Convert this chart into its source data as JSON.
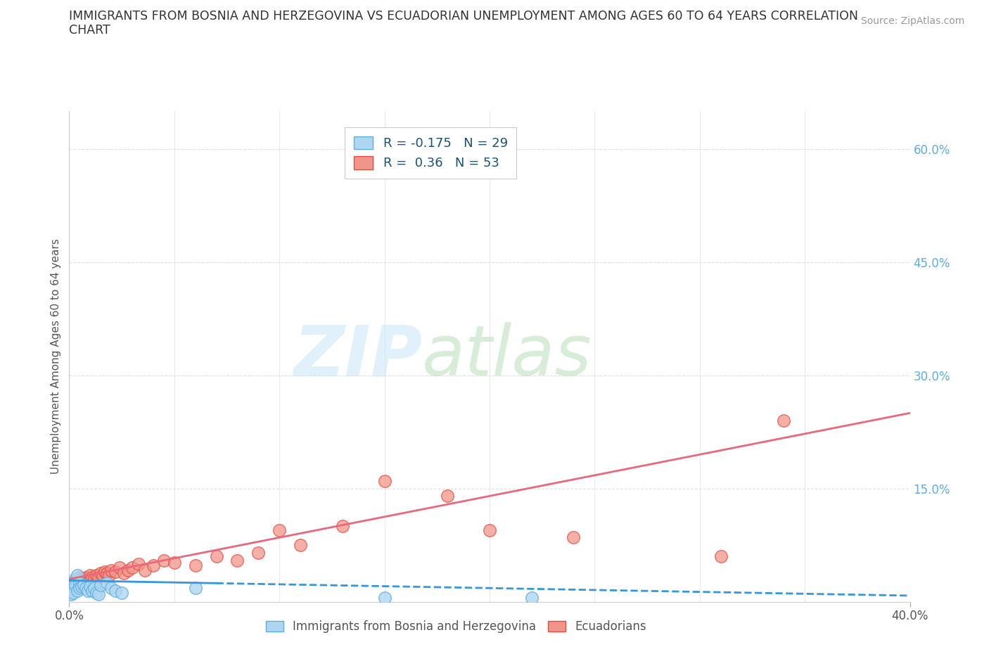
{
  "title_line1": "IMMIGRANTS FROM BOSNIA AND HERZEGOVINA VS ECUADORIAN UNEMPLOYMENT AMONG AGES 60 TO 64 YEARS CORRELATION",
  "title_line2": "CHART",
  "source": "Source: ZipAtlas.com",
  "ylabel": "Unemployment Among Ages 60 to 64 years",
  "xlim": [
    0.0,
    0.4
  ],
  "ylim": [
    0.0,
    0.65
  ],
  "right_yticks": [
    0.15,
    0.3,
    0.45,
    0.6
  ],
  "right_yticklabels": [
    "15.0%",
    "30.0%",
    "45.0%",
    "60.0%"
  ],
  "blue_color": "#AED6F1",
  "blue_edge_color": "#5DADE2",
  "pink_color": "#F1948A",
  "pink_edge_color": "#E74C3C",
  "blue_R": -0.175,
  "blue_N": 29,
  "pink_R": 0.36,
  "pink_N": 53,
  "blue_line_color": "#3498DB",
  "pink_line_color": "#E8697D",
  "watermark_zip": "ZIP",
  "watermark_atlas": "atlas",
  "legend_label_blue": "Immigrants from Bosnia and Herzegovina",
  "legend_label_pink": "Ecuadorians",
  "blue_scatter_x": [
    0.001,
    0.001,
    0.001,
    0.002,
    0.002,
    0.002,
    0.003,
    0.003,
    0.004,
    0.004,
    0.005,
    0.005,
    0.006,
    0.007,
    0.008,
    0.009,
    0.01,
    0.011,
    0.012,
    0.013,
    0.014,
    0.015,
    0.018,
    0.02,
    0.022,
    0.025,
    0.06,
    0.15,
    0.22
  ],
  "blue_scatter_y": [
    0.02,
    0.015,
    0.01,
    0.025,
    0.018,
    0.012,
    0.03,
    0.022,
    0.035,
    0.015,
    0.025,
    0.018,
    0.02,
    0.022,
    0.018,
    0.015,
    0.02,
    0.015,
    0.018,
    0.012,
    0.01,
    0.022,
    0.025,
    0.018,
    0.015,
    0.012,
    0.018,
    0.005,
    0.005
  ],
  "pink_scatter_x": [
    0.001,
    0.001,
    0.002,
    0.002,
    0.003,
    0.003,
    0.004,
    0.004,
    0.005,
    0.005,
    0.006,
    0.006,
    0.007,
    0.007,
    0.008,
    0.008,
    0.009,
    0.009,
    0.01,
    0.01,
    0.011,
    0.012,
    0.013,
    0.014,
    0.015,
    0.016,
    0.017,
    0.018,
    0.019,
    0.02,
    0.022,
    0.024,
    0.026,
    0.028,
    0.03,
    0.033,
    0.036,
    0.04,
    0.045,
    0.05,
    0.06,
    0.07,
    0.08,
    0.09,
    0.1,
    0.11,
    0.13,
    0.15,
    0.18,
    0.2,
    0.24,
    0.31,
    0.34
  ],
  "pink_scatter_y": [
    0.022,
    0.018,
    0.025,
    0.02,
    0.028,
    0.022,
    0.03,
    0.025,
    0.032,
    0.025,
    0.028,
    0.022,
    0.03,
    0.025,
    0.032,
    0.028,
    0.03,
    0.025,
    0.035,
    0.028,
    0.032,
    0.03,
    0.035,
    0.032,
    0.038,
    0.035,
    0.04,
    0.038,
    0.035,
    0.042,
    0.04,
    0.045,
    0.038,
    0.042,
    0.045,
    0.05,
    0.042,
    0.048,
    0.055,
    0.052,
    0.048,
    0.06,
    0.055,
    0.065,
    0.095,
    0.075,
    0.1,
    0.16,
    0.14,
    0.095,
    0.085,
    0.06,
    0.24
  ],
  "background_color": "#ffffff",
  "grid_color": "#e0e0e0",
  "title_color": "#333333",
  "axis_label_color": "#555555",
  "right_tick_color": "#5DADE2",
  "pink_line_start_y": 0.03,
  "pink_line_end_y": 0.25,
  "blue_line_start_y": 0.028,
  "blue_line_end_y": 0.008
}
